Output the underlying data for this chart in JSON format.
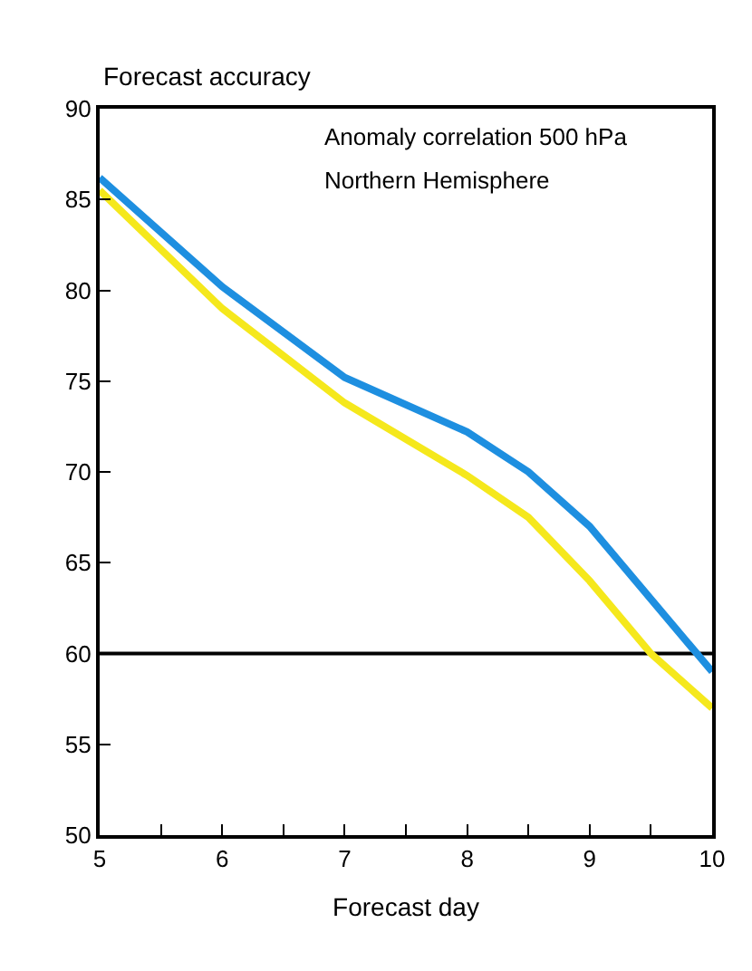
{
  "chart_data": {
    "type": "line",
    "xlabel": "Forecast day",
    "ylabel": "Forecast accuracy",
    "annotations": [
      "Anomaly correlation 500 hPa",
      "Northern Hemisphere"
    ],
    "series": [
      {
        "color": "#1e8fe0",
        "x": [
          5,
          6,
          7,
          8,
          8.5,
          9,
          10
        ],
        "values": [
          86.2,
          80.2,
          75.2,
          72.2,
          70,
          67,
          59
        ]
      },
      {
        "color": "#f5e81c",
        "x": [
          5,
          6,
          7,
          8,
          8.5,
          9,
          9.5,
          10
        ],
        "values": [
          85.5,
          79,
          73.8,
          69.8,
          67.5,
          64,
          60,
          57
        ]
      }
    ],
    "xlim": [
      5,
      10
    ],
    "ylim": [
      50,
      90
    ],
    "xticks": [
      5,
      {
        "value": 5.5,
        "label": null
      },
      6,
      {
        "value": 6.5,
        "label": null
      },
      7,
      {
        "value": 7.5,
        "label": null
      },
      8,
      {
        "value": 8.5,
        "label": null
      },
      9,
      {
        "value": 9.5,
        "label": null
      },
      10
    ],
    "yticks": [
      50,
      55,
      60,
      65,
      70,
      75,
      80,
      85,
      90
    ],
    "ref_lines": [
      {
        "axis": "y",
        "value": 60,
        "color": "#000000",
        "line_style": "solid"
      }
    ],
    "grid": false,
    "marker": "none",
    "line_style": "solid"
  }
}
